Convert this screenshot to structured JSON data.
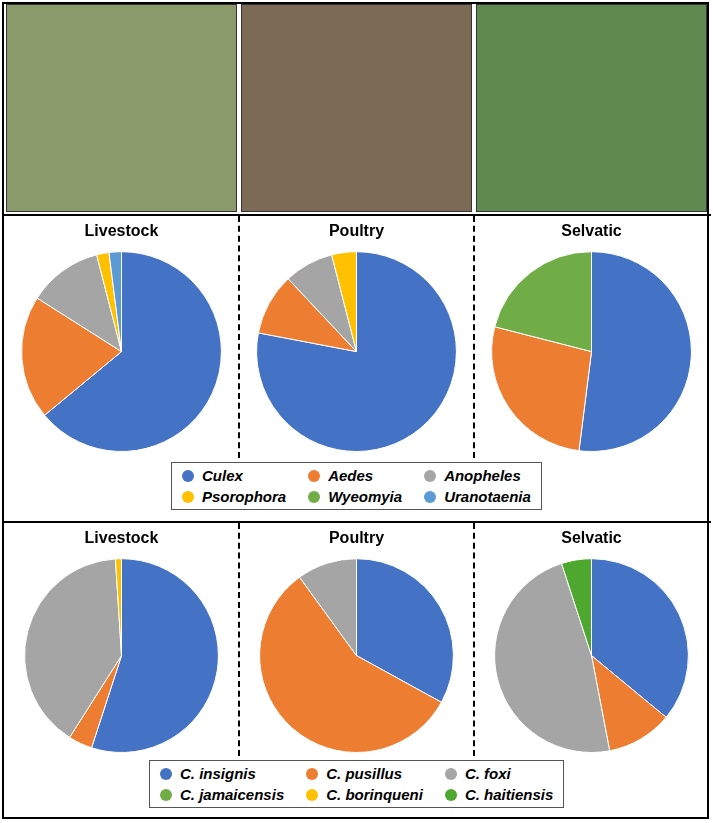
{
  "chart_data": [
    {
      "type": "pie",
      "title": "Livestock",
      "categories": [
        "Culex",
        "Aedes",
        "Anopheles",
        "Psorophora",
        "Wyeomyia",
        "Uranotaenia"
      ],
      "values": [
        64,
        20,
        12,
        2,
        0,
        2
      ],
      "colors": [
        "#4472c4",
        "#ed7d31",
        "#a5a5a5",
        "#ffc000",
        "#70ad47",
        "#5b9bd5"
      ],
      "legend": "bottom"
    },
    {
      "type": "pie",
      "title": "Poultry",
      "categories": [
        "Culex",
        "Aedes",
        "Anopheles",
        "Psorophora",
        "Wyeomyia",
        "Uranotaenia"
      ],
      "values": [
        78,
        10,
        8,
        4,
        0,
        0
      ],
      "colors": [
        "#4472c4",
        "#ed7d31",
        "#a5a5a5",
        "#ffc000",
        "#70ad47",
        "#5b9bd5"
      ],
      "legend": "bottom"
    },
    {
      "type": "pie",
      "title": "Selvatic",
      "categories": [
        "Culex",
        "Aedes",
        "Anopheles",
        "Psorophora",
        "Wyeomyia",
        "Uranotaenia"
      ],
      "values": [
        52,
        27,
        0,
        0,
        21,
        0
      ],
      "colors": [
        "#4472c4",
        "#ed7d31",
        "#a5a5a5",
        "#ffc000",
        "#70ad47",
        "#5b9bd5"
      ],
      "legend": "bottom"
    },
    {
      "type": "pie",
      "title": "Livestock",
      "categories": [
        "C. insignis",
        "C. pusillus",
        "C. foxi",
        "C. jamaicensis",
        "C. borinqueni",
        "C. haitiensis"
      ],
      "values": [
        55,
        4,
        40,
        0,
        1,
        0
      ],
      "colors": [
        "#4472c4",
        "#ed7d31",
        "#a5a5a5",
        "#70ad47",
        "#ffc000",
        "#4ea72e"
      ],
      "legend": "bottom"
    },
    {
      "type": "pie",
      "title": "Poultry",
      "categories": [
        "C. insignis",
        "C. pusillus",
        "C. foxi",
        "C. jamaicensis",
        "C. borinqueni",
        "C. haitiensis"
      ],
      "values": [
        33,
        57,
        10,
        0,
        0,
        0
      ],
      "colors": [
        "#4472c4",
        "#ed7d31",
        "#a5a5a5",
        "#70ad47",
        "#ffc000",
        "#4ea72e"
      ],
      "legend": "bottom"
    },
    {
      "type": "pie",
      "title": "Selvatic",
      "categories": [
        "C. insignis",
        "C. pusillus",
        "C. foxi",
        "C. jamaicensis",
        "C. borinqueni",
        "C. haitiensis"
      ],
      "values": [
        36,
        11,
        48,
        0,
        0,
        5
      ],
      "colors": [
        "#4472c4",
        "#ed7d31",
        "#a5a5a5",
        "#70ad47",
        "#ffc000",
        "#4ea72e"
      ],
      "legend": "bottom"
    }
  ]
}
